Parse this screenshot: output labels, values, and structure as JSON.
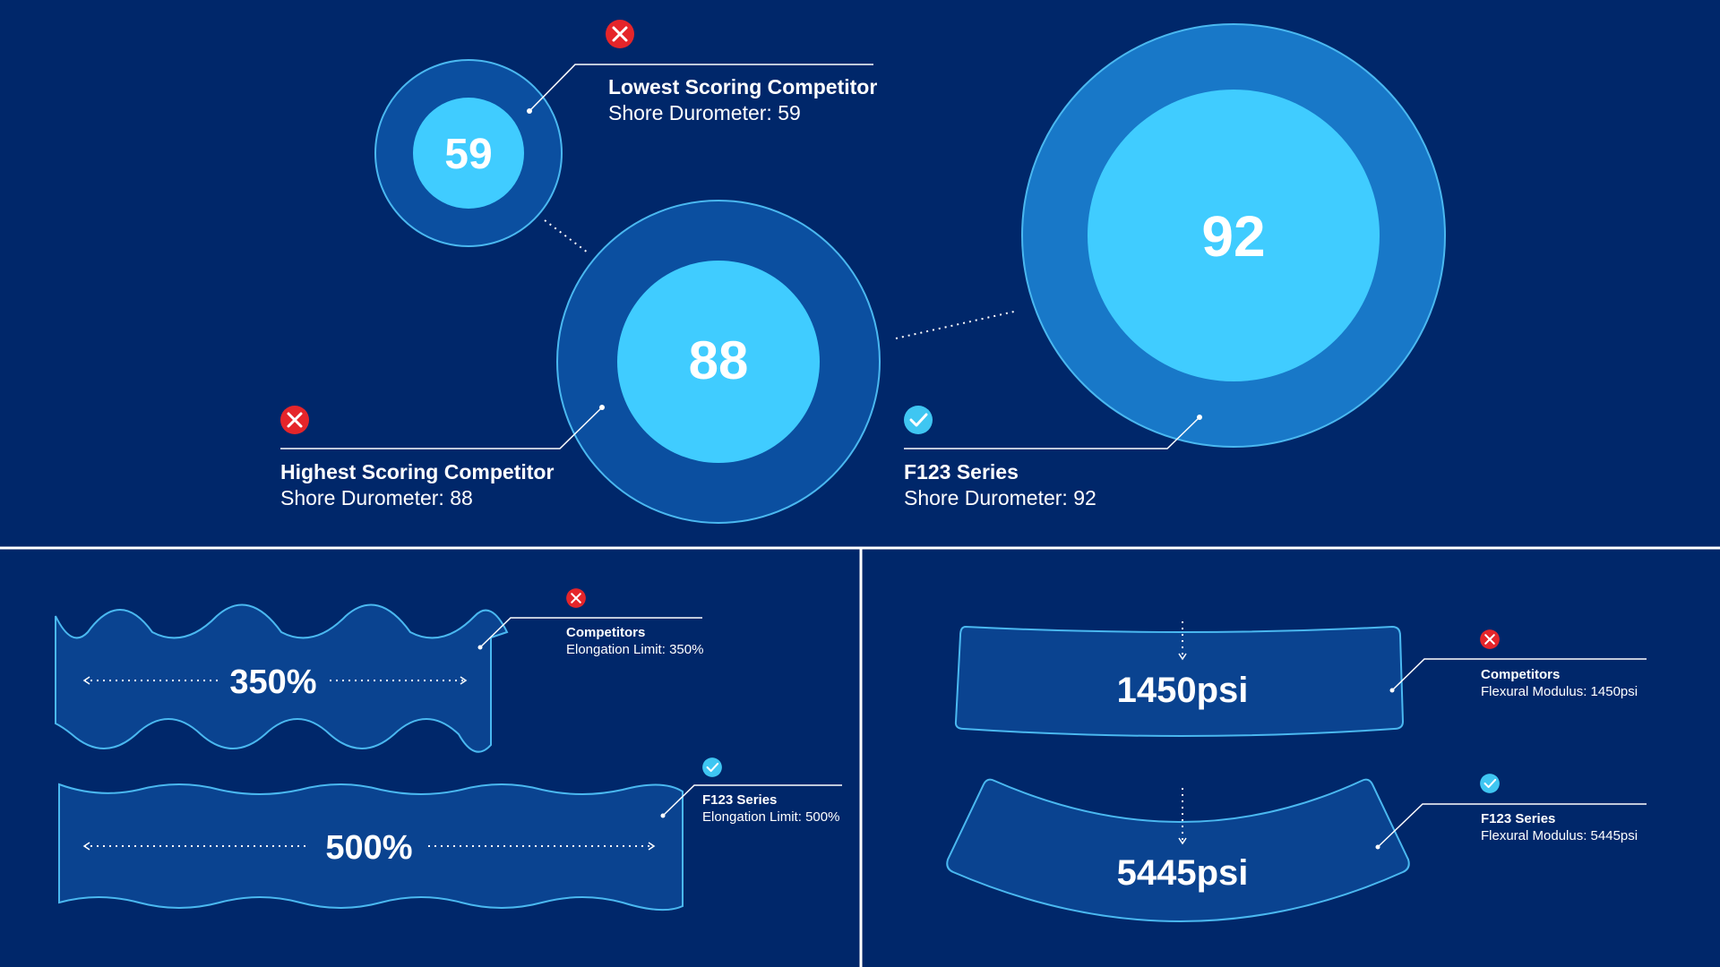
{
  "durometer": {
    "lowest": {
      "value": "59",
      "title": "Lowest Scoring Competitor",
      "subtitle": "Shore Durometer: 59",
      "status": "fail"
    },
    "highest": {
      "value": "88",
      "title": "Highest Scoring Competitor",
      "subtitle": "Shore Durometer: 88",
      "status": "fail"
    },
    "f123": {
      "value": "92",
      "title": "F123 Series",
      "subtitle": "Shore Durometer: 92",
      "status": "pass"
    }
  },
  "elongation": {
    "competitors": {
      "value": "350%",
      "title": "Competitors",
      "subtitle": "Elongation Limit: 350%",
      "status": "fail"
    },
    "f123": {
      "value": "500%",
      "title": "F123 Series",
      "subtitle": "Elongation Limit: 500%",
      "status": "pass"
    }
  },
  "flexural": {
    "competitors": {
      "value": "1450psi",
      "title": "Competitors",
      "subtitle": "Flexural Modulus: 1450psi",
      "status": "fail"
    },
    "f123": {
      "value": "5445psi",
      "title": "F123 Series",
      "subtitle": "Flexural Modulus: 5445psi",
      "status": "pass"
    }
  },
  "colors": {
    "background": "#00276a",
    "fail": "#e5252a",
    "pass": "#3fc6f2",
    "ring_outer": "#0b4fa0",
    "ring_outer_large": "#1878c8",
    "ring_inner": "#40ccff",
    "shape_fill": "#0a4390",
    "shape_stroke": "#4ab8f0"
  },
  "icons": {
    "fail": "x-circle-icon",
    "pass": "check-circle-icon"
  }
}
